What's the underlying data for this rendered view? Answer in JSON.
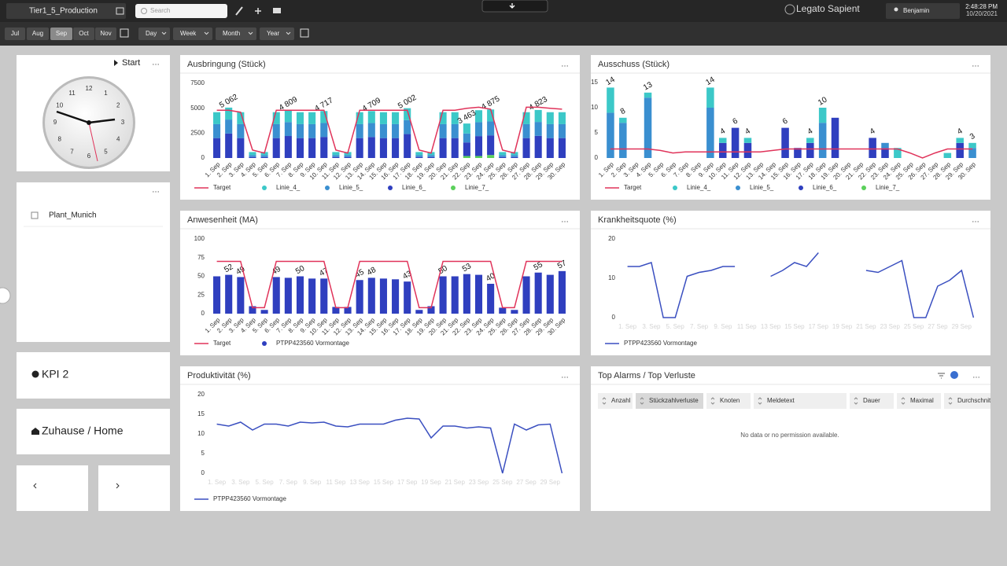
{
  "topbar": {
    "dashboard": "Tier1_5_Production",
    "search_placeholder": "Search",
    "brand": "Legato Sapient",
    "user": "Benjamin",
    "time": "2:48:28 PM",
    "date": "10/20/2021"
  },
  "filters": {
    "months": [
      "Jul",
      "Aug",
      "Sep",
      "Oct",
      "Nov"
    ],
    "selected_month": "Sep",
    "periods": [
      "Day",
      "Week",
      "Month",
      "Year"
    ]
  },
  "widgets": {
    "clock_title": "Start",
    "clock_numbers": [
      12,
      1,
      2,
      3,
      4,
      5,
      6,
      7,
      8,
      9,
      10,
      11
    ],
    "plant": "Plant_Munich",
    "kpi": "KPI 2",
    "home": "Zuhause / Home"
  },
  "alarms": {
    "title": "Top Alarms / Top Verluste",
    "columns": [
      "Anzahl",
      "Stückzahlverluste",
      "Knoten",
      "Meldetext",
      "Dauer",
      "Maximal",
      "Durchschnitt"
    ],
    "sorted_column": "Stückzahlverluste",
    "empty_message": "No data or no permission available."
  },
  "chart_data": [
    {
      "type": "bar",
      "title": "Ausbringung (Stück)",
      "stacked": true,
      "grid": false,
      "categories": [
        "1. Sep",
        "2. Sep",
        "3. Sep",
        "4. Sep",
        "5. Sep",
        "6. Sep",
        "7. Sep",
        "8. Sep",
        "9. Sep",
        "10. Sep",
        "11. Sep",
        "12. Sep",
        "13. Sep",
        "14. Sep",
        "15. Sep",
        "16. Sep",
        "17. Sep",
        "18. Sep",
        "19. Sep",
        "20. Sep",
        "21. Sep",
        "22. Sep",
        "23. Sep",
        "24. Sep",
        "25. Sep",
        "26. Sep",
        "27. Sep",
        "28. Sep",
        "29. Sep",
        "30. Sep"
      ],
      "ylim": [
        0,
        7500
      ],
      "yticks": [
        0,
        2500,
        5000,
        7500
      ],
      "series": [
        {
          "name": "Target",
          "type": "line",
          "color": "#e0335a",
          "values": [
            4800,
            4800,
            4600,
            800,
            500,
            4800,
            4800,
            4800,
            4800,
            4800,
            800,
            500,
            4800,
            4800,
            4800,
            4800,
            4800,
            800,
            500,
            4800,
            4800,
            5000,
            5100,
            4900,
            800,
            500,
            5100,
            5100,
            5000,
            4900
          ]
        },
        {
          "name": "Linie_4_",
          "color": "#3cc8c8",
          "values": [
            1200,
            1200,
            1200,
            300,
            300,
            1200,
            1200,
            1200,
            1200,
            1200,
            300,
            300,
            1200,
            1200,
            1200,
            1200,
            1200,
            300,
            300,
            1200,
            1200,
            1000,
            1200,
            1200,
            300,
            300,
            1200,
            1200,
            1200,
            1200
          ]
        },
        {
          "name": "Linie_5_",
          "color": "#3a8fd0",
          "values": [
            1400,
            1400,
            1400,
            200,
            200,
            1400,
            1400,
            1400,
            1400,
            1400,
            200,
            200,
            1400,
            1400,
            1400,
            1400,
            1400,
            200,
            200,
            1400,
            1400,
            900,
            1400,
            1400,
            200,
            200,
            1400,
            1400,
            1400,
            1400
          ]
        },
        {
          "name": "Linie_6_",
          "color": "#2f3fbf",
          "values": [
            2000,
            2462,
            2000,
            100,
            100,
            2000,
            2209,
            2000,
            2000,
            2117,
            100,
            100,
            2000,
            2109,
            2000,
            2000,
            2402,
            100,
            100,
            2000,
            2000,
            1363,
            2000,
            1975,
            100,
            100,
            2000,
            2223,
            2000,
            2000
          ]
        },
        {
          "name": "Linie_7_",
          "color": "#5bd05b",
          "values": [
            0,
            0,
            0,
            0,
            0,
            0,
            0,
            0,
            0,
            0,
            0,
            0,
            0,
            0,
            0,
            0,
            0,
            0,
            0,
            0,
            0,
            200,
            200,
            300,
            0,
            0,
            0,
            0,
            0,
            0
          ]
        }
      ],
      "annotations": [
        {
          "x": "2. Sep",
          "label": "5 062"
        },
        {
          "x": "7. Sep",
          "label": "4 809"
        },
        {
          "x": "10. Sep",
          "label": "4 717"
        },
        {
          "x": "14. Sep",
          "label": "4 709"
        },
        {
          "x": "17. Sep",
          "label": "5 002"
        },
        {
          "x": "22. Sep",
          "label": "3 463"
        },
        {
          "x": "24. Sep",
          "label": "4 875"
        },
        {
          "x": "28. Sep",
          "label": "4 823"
        }
      ]
    },
    {
      "type": "bar",
      "title": "Ausschuss (Stück)",
      "stacked": true,
      "grid": false,
      "categories": [
        "1. Sep",
        "2. Sep",
        "3. Sep",
        "4. Sep",
        "5. Sep",
        "6. Sep",
        "7. Sep",
        "8. Sep",
        "9. Sep",
        "10. Sep",
        "11. Sep",
        "12. Sep",
        "13. Sep",
        "14. Sep",
        "15. Sep",
        "16. Sep",
        "17. Sep",
        "18. Sep",
        "19. Sep",
        "20. Sep",
        "21. Sep",
        "22. Sep",
        "23. Sep",
        "24. Sep",
        "25. Sep",
        "26. Sep",
        "27. Sep",
        "28. Sep",
        "29. Sep",
        "30. Sep"
      ],
      "ylim": [
        0,
        15
      ],
      "yticks": [
        0,
        5,
        10,
        15
      ],
      "series": [
        {
          "name": "Target",
          "type": "line",
          "color": "#e0335a",
          "values": [
            1.8,
            1.8,
            1.8,
            1.8,
            1.5,
            1,
            1.2,
            1.2,
            1.2,
            1.2,
            1.2,
            1.2,
            1.2,
            1.5,
            1.8,
            1.8,
            1.8,
            1.8,
            1.8,
            1.8,
            1.8,
            1.8,
            1.8,
            1.8,
            1,
            0,
            1,
            1.8,
            1.8,
            1.8
          ]
        },
        {
          "name": "Linie_4_",
          "color": "#3cc8c8",
          "values": [
            5,
            1,
            0,
            1,
            0,
            0,
            0,
            0,
            4,
            1,
            0,
            1,
            0,
            0,
            0,
            0,
            1,
            3,
            0,
            0,
            0,
            0,
            0,
            2,
            0,
            0,
            0,
            1,
            1,
            1
          ]
        },
        {
          "name": "Linie_5_",
          "color": "#3a8fd0",
          "values": [
            9,
            7,
            0,
            12,
            0,
            0,
            0,
            0,
            10,
            0,
            0,
            0,
            0,
            0,
            0,
            0,
            0,
            7,
            0,
            0,
            0,
            0,
            1,
            0,
            0,
            0,
            0,
            0,
            0,
            2
          ]
        },
        {
          "name": "Linie_6_",
          "color": "#2f3fbf",
          "values": [
            0,
            0,
            0,
            0,
            0,
            0,
            0,
            0,
            0,
            3,
            6,
            3,
            0,
            0,
            6,
            2,
            3,
            0,
            8,
            0,
            0,
            4,
            2,
            0,
            0,
            0,
            0,
            0,
            3,
            0
          ]
        },
        {
          "name": "Linie_7_",
          "color": "#5bd05b",
          "values": [
            0,
            0,
            0,
            0,
            0,
            0,
            0,
            0,
            0,
            0,
            0,
            0,
            0,
            0,
            0,
            0,
            0,
            0,
            0,
            0,
            0,
            0,
            0,
            0,
            0,
            0,
            0,
            0,
            0,
            0
          ]
        }
      ],
      "annotations": [
        {
          "x": "1. Sep",
          "label": "14"
        },
        {
          "x": "2. Sep",
          "label": "8"
        },
        {
          "x": "4. Sep",
          "label": "13"
        },
        {
          "x": "9. Sep",
          "label": "14"
        },
        {
          "x": "10. Sep",
          "label": "4"
        },
        {
          "x": "11. Sep",
          "label": "6"
        },
        {
          "x": "12. Sep",
          "label": "4"
        },
        {
          "x": "15. Sep",
          "label": "6"
        },
        {
          "x": "17. Sep",
          "label": "4"
        },
        {
          "x": "18. Sep",
          "label": "10"
        },
        {
          "x": "22. Sep",
          "label": "4"
        },
        {
          "x": "29. Sep",
          "label": "4"
        },
        {
          "x": "30. Sep",
          "label": "3"
        }
      ]
    },
    {
      "type": "bar",
      "title": "Anwesenheit (MA)",
      "grid": false,
      "categories": [
        "1. Sep",
        "2. Sep",
        "3. Sep",
        "4. Sep",
        "5. Sep",
        "6. Sep",
        "7. Sep",
        "8. Sep",
        "9. Sep",
        "10. Sep",
        "11. Sep",
        "12. Sep",
        "13. Sep",
        "14. Sep",
        "15. Sep",
        "16. Sep",
        "17. Sep",
        "18. Sep",
        "19. Sep",
        "20. Sep",
        "21. Sep",
        "22. Sep",
        "23. Sep",
        "24. Sep",
        "25. Sep",
        "26. Sep",
        "27. Sep",
        "28. Sep",
        "29. Sep",
        "30. Sep"
      ],
      "ylim": [
        0,
        100
      ],
      "yticks": [
        0,
        25,
        50,
        75,
        100
      ],
      "series": [
        {
          "name": "Target",
          "type": "line",
          "color": "#e0335a",
          "values": [
            70,
            70,
            70,
            8,
            8,
            70,
            70,
            70,
            70,
            70,
            8,
            8,
            70,
            70,
            70,
            70,
            70,
            8,
            8,
            70,
            70,
            70,
            70,
            70,
            8,
            8,
            70,
            70,
            70,
            70
          ]
        },
        {
          "name": "PTPP423560 Vormontage",
          "color": "#2f3fbf",
          "values": [
            50,
            52,
            49,
            10,
            5,
            49,
            48,
            50,
            47,
            47,
            9,
            9,
            45,
            48,
            47,
            46,
            43,
            5,
            10,
            50,
            50,
            53,
            52,
            40,
            8,
            5,
            50,
            55,
            52,
            57
          ],
          "value_labels": [
            null,
            "52",
            "49",
            null,
            null,
            "49",
            null,
            "50",
            null,
            "47",
            null,
            null,
            "45",
            "48",
            null,
            null,
            "43",
            null,
            null,
            "50",
            null,
            "53",
            null,
            "40",
            null,
            null,
            null,
            "55",
            null,
            "57"
          ]
        }
      ]
    },
    {
      "type": "line",
      "title": "Krankheitsquote (%)",
      "grid": false,
      "categories": [
        "1. Sep",
        null,
        "3. Sep",
        null,
        "5. Sep",
        null,
        "7. Sep",
        null,
        "9. Sep",
        null,
        "11 Sep",
        null,
        "13 Sep",
        null,
        "15 Sep",
        null,
        "17 Sep",
        null,
        "19 Sep",
        null,
        "21 Sep",
        null,
        "23 Sep",
        null,
        "25 Sep",
        null,
        "27 Sep",
        null,
        "29 Sep",
        null
      ],
      "ylim": [
        0,
        20
      ],
      "yticks": [
        0,
        10,
        20
      ],
      "series": [
        {
          "name": "PTPP423560 Vormontage",
          "color": "#3a4fc0",
          "values": [
            13,
            13,
            14,
            0,
            0,
            10.5,
            11.5,
            12,
            13,
            13,
            null,
            null,
            10.5,
            12,
            14,
            13,
            16.5,
            null,
            null,
            null,
            12,
            11.5,
            13,
            14.5,
            0,
            0,
            8,
            9.5,
            12,
            0
          ]
        }
      ]
    },
    {
      "type": "line",
      "title": "Produktivität (%)",
      "grid": false,
      "categories": [
        "1. Sep",
        null,
        "3. Sep",
        null,
        "5. Sep",
        null,
        "7. Sep",
        null,
        "9. Sep",
        null,
        "11 Sep",
        null,
        "13 Sep",
        null,
        "15 Sep",
        null,
        "17 Sep",
        null,
        "19 Sep",
        null,
        "21 Sep",
        null,
        "23 Sep",
        null,
        "25 Sep",
        null,
        "27 Sep",
        null,
        "29 Sep",
        null
      ],
      "ylim": [
        0,
        20
      ],
      "yticks": [
        0,
        5,
        10,
        15,
        20
      ],
      "series": [
        {
          "name": "PTPP423560 Vormontage",
          "color": "#3a4fc0",
          "values": [
            12.5,
            12,
            13,
            11,
            12.5,
            12.5,
            12,
            13,
            12.8,
            13,
            12,
            11.8,
            12.5,
            12.5,
            12.5,
            13.5,
            14,
            13.8,
            9,
            12,
            12,
            11.5,
            11.8,
            11.5,
            0,
            12.5,
            11,
            12.3,
            12.5,
            0
          ]
        }
      ]
    }
  ]
}
